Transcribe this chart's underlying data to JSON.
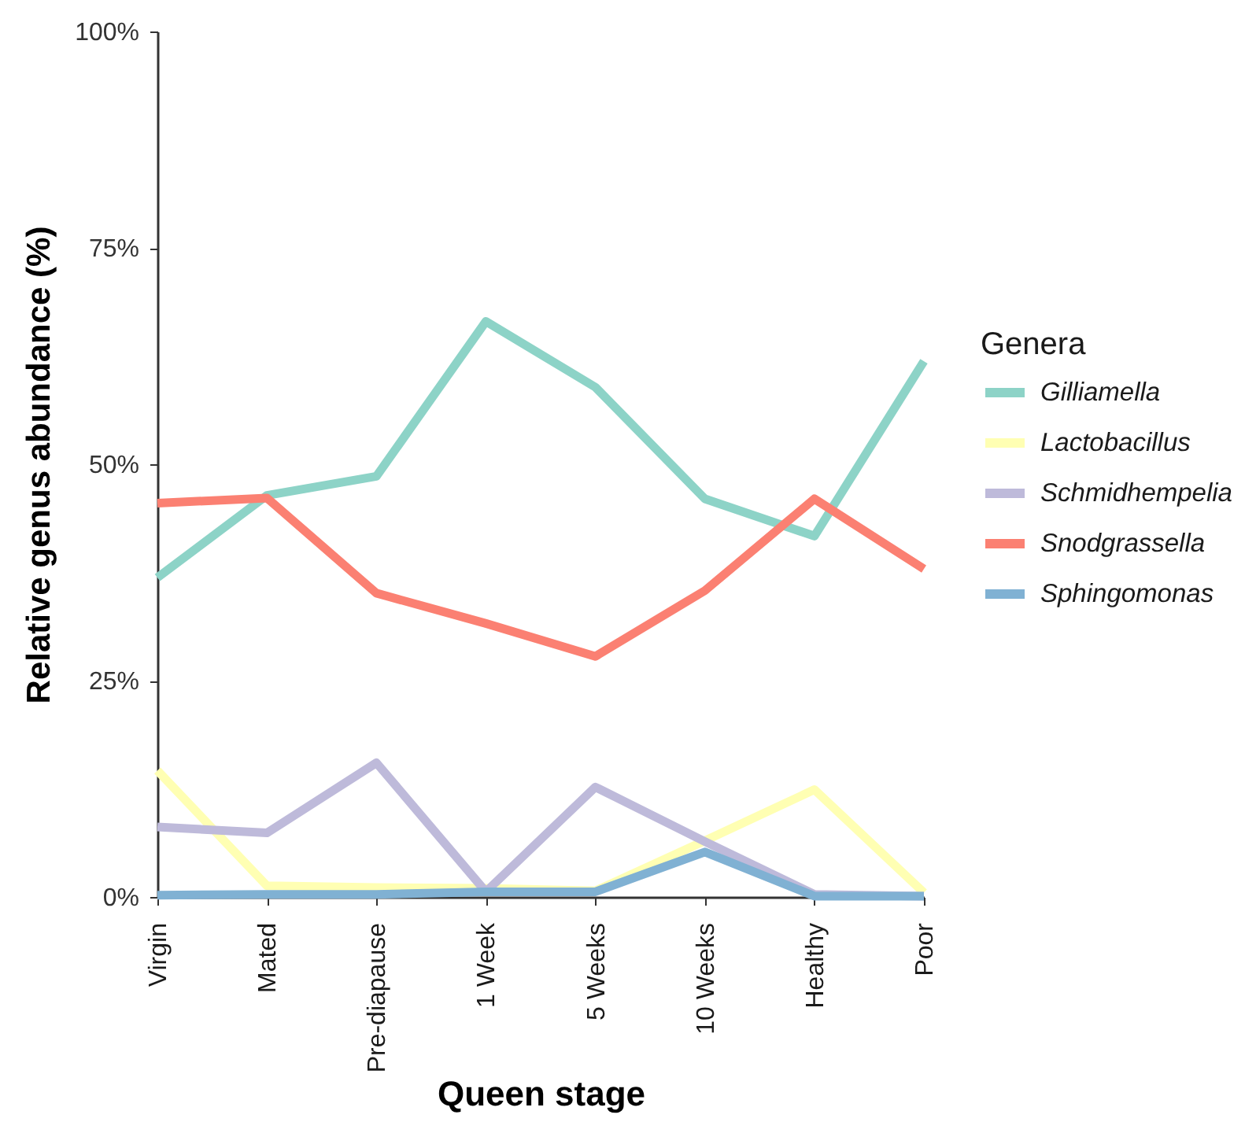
{
  "chart_data": {
    "type": "line",
    "xlabel": "Queen stage",
    "ylabel": "Relative genus abundance (%)",
    "legend_title": "Genera",
    "categories": [
      "Virgin",
      "Mated",
      "Pre-diapause",
      "1 Week",
      "5 Weeks",
      "10 Weeks",
      "Healthy",
      "Poor"
    ],
    "series": [
      {
        "name": "Gilliamella",
        "color": "#8dd3c7",
        "values": [
          36.9,
          46.4,
          48.6,
          66.5,
          58.9,
          46.0,
          41.7,
          61.9
        ]
      },
      {
        "name": "Lactobacillus",
        "color": "#ffffb3",
        "values": [
          14.6,
          1.3,
          1.1,
          1.0,
          0.7,
          6.5,
          12.4,
          0.5
        ]
      },
      {
        "name": "Schmidhempelia",
        "color": "#bebada",
        "values": [
          8.1,
          7.4,
          15.5,
          0.6,
          12.7,
          6.4,
          0.3,
          0.1
        ]
      },
      {
        "name": "Snodgrassella",
        "color": "#fb8072",
        "values": [
          45.5,
          46.1,
          35.1,
          31.6,
          27.8,
          35.4,
          46.0,
          37.9
        ]
      },
      {
        "name": "Sphingomonas",
        "color": "#80b1d3",
        "values": [
          0.2,
          0.3,
          0.3,
          0.6,
          0.6,
          5.2,
          0.1,
          0.1
        ]
      }
    ],
    "ylim": [
      0,
      100
    ],
    "yticks": [
      {
        "value": 0,
        "label": "0%"
      },
      {
        "value": 25,
        "label": "25%"
      },
      {
        "value": 50,
        "label": "50%"
      },
      {
        "value": 75,
        "label": "75%"
      },
      {
        "value": 100,
        "label": "100%"
      }
    ],
    "grid": false,
    "legend": "right",
    "line_style": "solid"
  }
}
